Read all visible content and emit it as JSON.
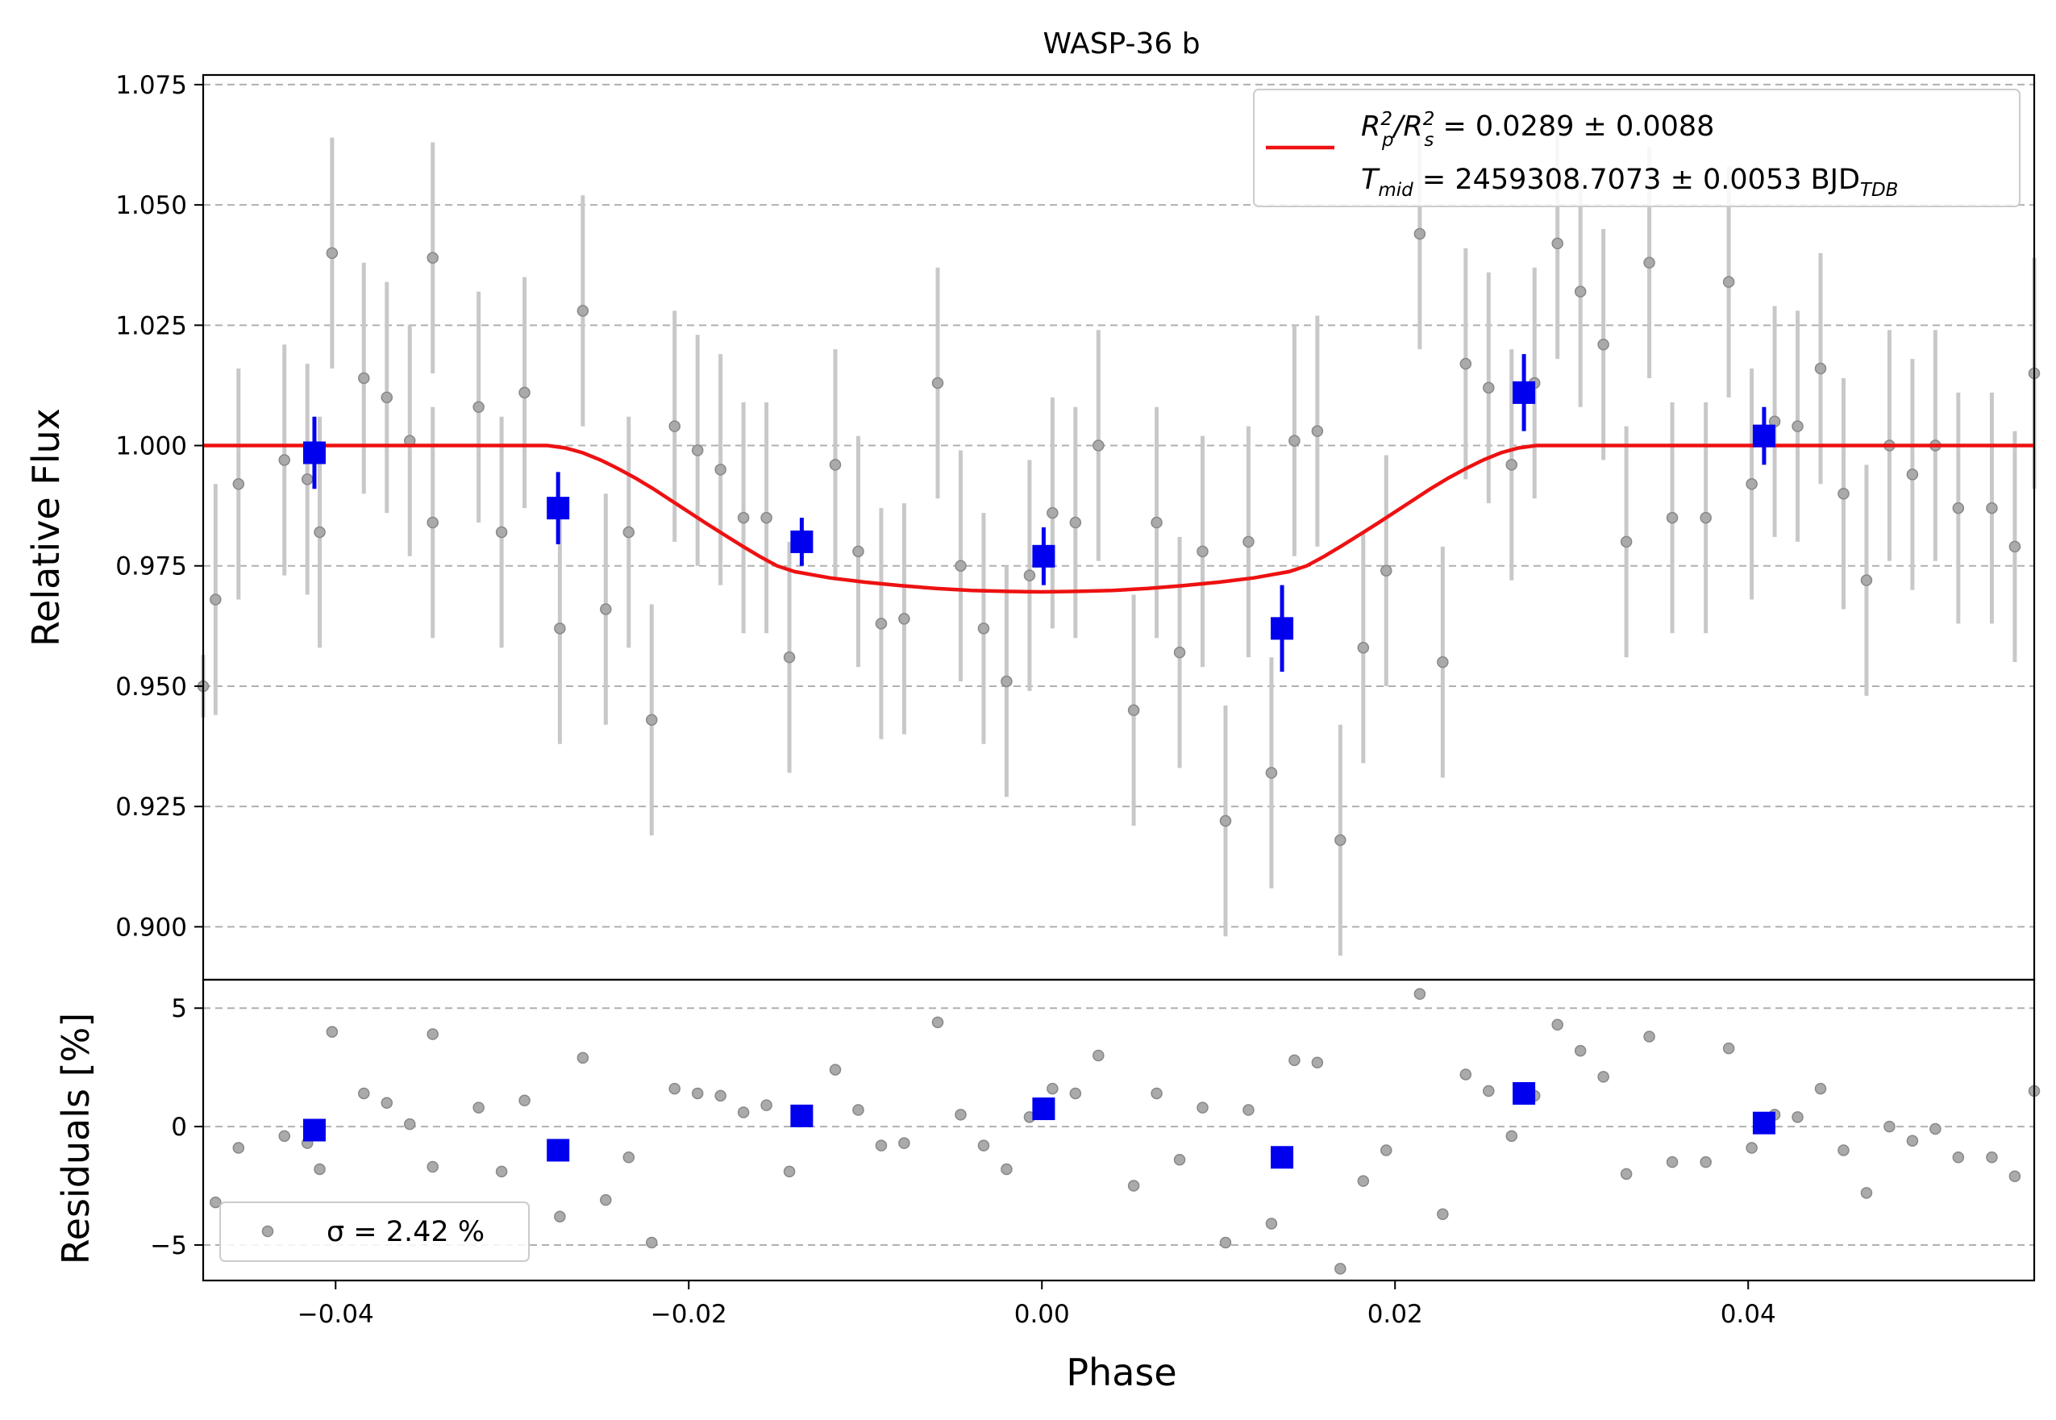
{
  "chart_data": [
    {
      "type": "scatter",
      "panel": "main",
      "title": "WASP-36 b",
      "ylabel": "Relative Flux",
      "xlim": [
        -0.0475,
        0.0562
      ],
      "ylim": [
        0.889,
        1.077
      ],
      "grid": "y-dashed",
      "yticks": [
        "0.900",
        "0.925",
        "0.950",
        "0.975",
        "1.000",
        "1.025",
        "1.050",
        "1.075"
      ],
      "legend": {
        "placement": "top-right",
        "model_line": {
          "color": "#ee1111",
          "line1_before": "R",
          "line1_sub1": "p",
          "line1_sup1": "2",
          "line1_mid": "/R",
          "line1_sub2": "s",
          "line1_sup2": "2",
          "line1_after": " = 0.0289 ± 0.0088",
          "line2_before": "T",
          "line2_sub": "mid",
          "line2_after": " = 2459308.7073 ± 0.0053 BJD",
          "line2_sub2": "TDB"
        }
      },
      "series": [
        {
          "name": "",
          "kind": "data",
          "color": "#888888",
          "errbar_color": "#c8c8c8",
          "points": [
            [
              -0.0475,
              0.95,
              0.0065
            ],
            [
              -0.0468,
              0.968,
              0.024
            ],
            [
              -0.0455,
              0.992,
              0.024
            ],
            [
              -0.0429,
              0.997,
              0.024
            ],
            [
              -0.0416,
              0.993,
              0.024
            ],
            [
              -0.0409,
              0.982,
              0.024
            ],
            [
              -0.0402,
              1.04,
              0.024
            ],
            [
              -0.0384,
              1.014,
              0.024
            ],
            [
              -0.0371,
              1.01,
              0.024
            ],
            [
              -0.0358,
              1.001,
              0.024
            ],
            [
              -0.0345,
              0.984,
              0.024
            ],
            [
              -0.0345,
              1.039,
              0.024
            ],
            [
              -0.0319,
              1.008,
              0.024
            ],
            [
              -0.0306,
              0.982,
              0.024
            ],
            [
              -0.0293,
              1.011,
              0.024
            ],
            [
              -0.0273,
              0.962,
              0.024
            ],
            [
              -0.026,
              1.028,
              0.024
            ],
            [
              -0.0247,
              0.966,
              0.024
            ],
            [
              -0.0234,
              0.982,
              0.024
            ],
            [
              -0.0221,
              0.943,
              0.024
            ],
            [
              -0.0208,
              1.004,
              0.024
            ],
            [
              -0.0195,
              0.999,
              0.024
            ],
            [
              -0.0182,
              0.995,
              0.024
            ],
            [
              -0.0169,
              0.985,
              0.024
            ],
            [
              -0.0156,
              0.985,
              0.024
            ],
            [
              -0.0143,
              0.956,
              0.024
            ],
            [
              -0.0117,
              0.996,
              0.024
            ],
            [
              -0.0104,
              0.978,
              0.024
            ],
            [
              -0.0091,
              0.963,
              0.024
            ],
            [
              -0.0078,
              0.964,
              0.024
            ],
            [
              -0.0059,
              1.013,
              0.024
            ],
            [
              -0.0046,
              0.975,
              0.024
            ],
            [
              -0.0033,
              0.962,
              0.024
            ],
            [
              -0.002,
              0.951,
              0.024
            ],
            [
              -0.0007,
              0.973,
              0.024
            ],
            [
              0.0006,
              0.986,
              0.024
            ],
            [
              0.0019,
              0.984,
              0.024
            ],
            [
              0.0032,
              1.0,
              0.024
            ],
            [
              0.0052,
              0.945,
              0.024
            ],
            [
              0.0065,
              0.984,
              0.024
            ],
            [
              0.0078,
              0.957,
              0.024
            ],
            [
              0.0091,
              0.978,
              0.024
            ],
            [
              0.0104,
              0.922,
              0.024
            ],
            [
              0.0117,
              0.98,
              0.024
            ],
            [
              0.013,
              0.932,
              0.024
            ],
            [
              0.0143,
              1.001,
              0.024
            ],
            [
              0.0156,
              1.003,
              0.024
            ],
            [
              0.0169,
              0.918,
              0.024
            ],
            [
              0.0182,
              0.958,
              0.024
            ],
            [
              0.0195,
              0.974,
              0.024
            ],
            [
              0.0214,
              1.044,
              0.024
            ],
            [
              0.0227,
              0.955,
              0.024
            ],
            [
              0.024,
              1.017,
              0.024
            ],
            [
              0.0253,
              1.012,
              0.024
            ],
            [
              0.0266,
              0.996,
              0.024
            ],
            [
              0.0279,
              1.013,
              0.024
            ],
            [
              0.0292,
              1.042,
              0.024
            ],
            [
              0.0305,
              1.032,
              0.024
            ],
            [
              0.0318,
              1.021,
              0.024
            ],
            [
              0.0331,
              0.98,
              0.024
            ],
            [
              0.0344,
              1.038,
              0.024
            ],
            [
              0.0357,
              0.985,
              0.024
            ],
            [
              0.0376,
              0.985,
              0.024
            ],
            [
              0.0389,
              1.034,
              0.024
            ],
            [
              0.0402,
              0.992,
              0.024
            ],
            [
              0.0415,
              1.005,
              0.024
            ],
            [
              0.0428,
              1.004,
              0.024
            ],
            [
              0.0441,
              1.016,
              0.024
            ],
            [
              0.0454,
              0.99,
              0.024
            ],
            [
              0.0467,
              0.972,
              0.024
            ],
            [
              0.048,
              1.0,
              0.024
            ],
            [
              0.0493,
              0.994,
              0.024
            ],
            [
              0.0506,
              1.0,
              0.024
            ],
            [
              0.0519,
              0.987,
              0.024
            ],
            [
              0.0538,
              0.987,
              0.024
            ],
            [
              0.0551,
              0.979,
              0.024
            ],
            [
              0.0562,
              1.015,
              0.024
            ]
          ]
        },
        {
          "name": "",
          "kind": "binned",
          "color": "#0000ee",
          "points": [
            [
              -0.0412,
              0.9985,
              0.0075
            ],
            [
              -0.0274,
              0.987,
              0.0075
            ],
            [
              -0.0136,
              0.98,
              0.005
            ],
            [
              0.0001,
              0.977,
              0.006
            ],
            [
              0.0136,
              0.962,
              0.009
            ],
            [
              0.0273,
              1.011,
              0.008
            ],
            [
              0.0409,
              1.002,
              0.006
            ]
          ]
        },
        {
          "name": "",
          "kind": "model",
          "color": "#ee1111",
          "points": [
            [
              -0.0475,
              1.0
            ],
            [
              -0.028,
              1.0
            ],
            [
              -0.027,
              0.9995
            ],
            [
              -0.026,
              0.9985
            ],
            [
              -0.025,
              0.997
            ],
            [
              -0.024,
              0.9952
            ],
            [
              -0.023,
              0.9932
            ],
            [
              -0.022,
              0.991
            ],
            [
              -0.021,
              0.9886
            ],
            [
              -0.02,
              0.9862
            ],
            [
              -0.019,
              0.9838
            ],
            [
              -0.018,
              0.9815
            ],
            [
              -0.017,
              0.9792
            ],
            [
              -0.016,
              0.977
            ],
            [
              -0.015,
              0.975
            ],
            [
              -0.014,
              0.9738
            ],
            [
              -0.012,
              0.9725
            ],
            [
              -0.01,
              0.9716
            ],
            [
              -0.008,
              0.9709
            ],
            [
              -0.006,
              0.9703
            ],
            [
              -0.004,
              0.9699
            ],
            [
              -0.002,
              0.9697
            ],
            [
              0.0,
              0.9696
            ],
            [
              0.002,
              0.9697
            ],
            [
              0.004,
              0.9699
            ],
            [
              0.006,
              0.9703
            ],
            [
              0.008,
              0.9709
            ],
            [
              0.01,
              0.9716
            ],
            [
              0.012,
              0.9725
            ],
            [
              0.014,
              0.9738
            ],
            [
              0.015,
              0.975
            ],
            [
              0.016,
              0.977
            ],
            [
              0.017,
              0.9792
            ],
            [
              0.018,
              0.9815
            ],
            [
              0.019,
              0.9838
            ],
            [
              0.02,
              0.9862
            ],
            [
              0.021,
              0.9886
            ],
            [
              0.022,
              0.991
            ],
            [
              0.023,
              0.9932
            ],
            [
              0.024,
              0.9952
            ],
            [
              0.025,
              0.997
            ],
            [
              0.026,
              0.9985
            ],
            [
              0.027,
              0.9995
            ],
            [
              0.028,
              1.0
            ],
            [
              0.0562,
              1.0
            ]
          ]
        }
      ]
    },
    {
      "type": "scatter",
      "panel": "residuals",
      "xlabel": "Phase",
      "ylabel": "Residuals [%]",
      "xlim": [
        -0.0475,
        0.0562
      ],
      "ylim": [
        -6.5,
        6.2
      ],
      "grid": "y-dashed",
      "xticks": [
        "−0.04",
        "−0.02",
        "0.00",
        "0.02",
        "0.04"
      ],
      "yticks": [
        "−5",
        "0",
        "5"
      ],
      "legend": {
        "placement": "bottom-left",
        "label": "σ = 2.42 %"
      },
      "series": [
        {
          "name": "",
          "kind": "data",
          "color": "#888888",
          "points": [
            [
              -0.0468,
              -3.2
            ],
            [
              -0.0455,
              -0.9
            ],
            [
              -0.0429,
              -0.4
            ],
            [
              -0.0416,
              -0.7
            ],
            [
              -0.0409,
              -1.8
            ],
            [
              -0.0402,
              4.0
            ],
            [
              -0.0384,
              1.4
            ],
            [
              -0.0371,
              1.0
            ],
            [
              -0.0358,
              0.1
            ],
            [
              -0.0345,
              3.9
            ],
            [
              -0.0345,
              -1.7
            ],
            [
              -0.0319,
              0.8
            ],
            [
              -0.0306,
              -1.9
            ],
            [
              -0.0293,
              1.1
            ],
            [
              -0.0273,
              -3.8
            ],
            [
              -0.026,
              2.9
            ],
            [
              -0.0247,
              -3.1
            ],
            [
              -0.0234,
              -1.3
            ],
            [
              -0.0221,
              -4.9
            ],
            [
              -0.0208,
              1.6
            ],
            [
              -0.0195,
              1.4
            ],
            [
              -0.0182,
              1.3
            ],
            [
              -0.0169,
              0.6
            ],
            [
              -0.0156,
              0.9
            ],
            [
              -0.0143,
              -1.9
            ],
            [
              -0.0117,
              2.4
            ],
            [
              -0.0104,
              0.7
            ],
            [
              -0.0091,
              -0.8
            ],
            [
              -0.0078,
              -0.7
            ],
            [
              -0.0059,
              4.4
            ],
            [
              -0.0046,
              0.5
            ],
            [
              -0.0033,
              -0.8
            ],
            [
              -0.002,
              -1.8
            ],
            [
              -0.0007,
              0.4
            ],
            [
              0.0006,
              1.6
            ],
            [
              0.0019,
              1.4
            ],
            [
              0.0032,
              3.0
            ],
            [
              0.0052,
              -2.5
            ],
            [
              0.0065,
              1.4
            ],
            [
              0.0078,
              -1.4
            ],
            [
              0.0091,
              0.8
            ],
            [
              0.0104,
              -4.9
            ],
            [
              0.0117,
              0.7
            ],
            [
              0.013,
              -4.1
            ],
            [
              0.0143,
              2.8
            ],
            [
              0.0156,
              2.7
            ],
            [
              0.0169,
              -6.0
            ],
            [
              0.0182,
              -2.3
            ],
            [
              0.0195,
              -1.0
            ],
            [
              0.0214,
              5.6
            ],
            [
              0.0227,
              -3.7
            ],
            [
              0.024,
              2.2
            ],
            [
              0.0253,
              1.5
            ],
            [
              0.0266,
              -0.4
            ],
            [
              0.0279,
              1.3
            ],
            [
              0.0292,
              4.3
            ],
            [
              0.0305,
              3.2
            ],
            [
              0.0318,
              2.1
            ],
            [
              0.0331,
              -2.0
            ],
            [
              0.0344,
              3.8
            ],
            [
              0.0357,
              -1.5
            ],
            [
              0.0376,
              -1.5
            ],
            [
              0.0389,
              3.3
            ],
            [
              0.0402,
              -0.9
            ],
            [
              0.0415,
              0.5
            ],
            [
              0.0428,
              0.4
            ],
            [
              0.0441,
              1.6
            ],
            [
              0.0454,
              -1.0
            ],
            [
              0.0467,
              -2.8
            ],
            [
              0.048,
              0.0
            ],
            [
              0.0493,
              -0.6
            ],
            [
              0.0506,
              -0.1
            ],
            [
              0.0519,
              -1.3
            ],
            [
              0.0538,
              -1.3
            ],
            [
              0.0551,
              -2.1
            ],
            [
              0.0562,
              1.5
            ]
          ]
        },
        {
          "name": "",
          "kind": "binned",
          "color": "#0000ee",
          "points": [
            [
              -0.0412,
              -0.15
            ],
            [
              -0.0274,
              -1.0
            ],
            [
              -0.0136,
              0.45
            ],
            [
              0.0001,
              0.75
            ],
            [
              0.0136,
              -1.3
            ],
            [
              0.0273,
              1.4
            ],
            [
              0.0409,
              0.15
            ]
          ]
        }
      ]
    }
  ]
}
